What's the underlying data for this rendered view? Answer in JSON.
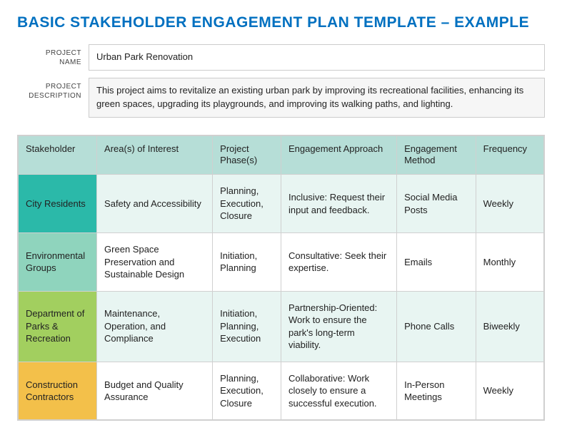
{
  "title": {
    "text": "BASIC STAKEHOLDER ENGAGEMENT PLAN TEMPLATE – EXAMPLE",
    "color": "#0070c0"
  },
  "meta": {
    "project_name_label": "PROJECT\nNAME",
    "project_name_value": "Urban Park Renovation",
    "project_desc_label": "PROJECT\nDESCRIPTION",
    "project_desc_value": "This project aims to revitalize an existing urban park by improving its recreational facilities, enhancing its green spaces, upgrading its playgrounds, and improving its walking paths, and lighting."
  },
  "table": {
    "header_bg": "#b6ded7",
    "row_tints": [
      "#e8f5f2",
      "#ffffff",
      "#e8f5f2",
      "#ffffff"
    ],
    "col_widths": [
      "15%",
      "22%",
      "13%",
      "22%",
      "15%",
      "13%"
    ],
    "columns": [
      "Stakeholder",
      "Area(s) of Interest",
      "Project Phase(s)",
      "Engagement Approach",
      "Engagement Method",
      "Frequency"
    ],
    "first_col_colors": [
      "#2bb9a9",
      "#8fd4bd",
      "#a2cf5f",
      "#f3c04a"
    ],
    "rows": [
      [
        "City Residents",
        "Safety and Accessibility",
        "Planning, Execution, Closure",
        "Inclusive: Request their input and feedback.",
        "Social Media Posts",
        "Weekly"
      ],
      [
        "Environmental Groups",
        "Green Space Preservation and Sustainable Design",
        "Initiation, Planning",
        "Consultative: Seek their expertise.",
        "Emails",
        "Monthly"
      ],
      [
        "Department of Parks & Recreation",
        "Maintenance, Operation, and Compliance",
        "Initiation, Planning, Execution",
        "Partnership-Oriented: Work to ensure the park's long-term viability.",
        "Phone Calls",
        "Biweekly"
      ],
      [
        "Construction Contractors",
        "Budget and Quality Assurance",
        "Planning, Execution, Closure",
        "Collaborative: Work closely to ensure a successful execution.",
        "In-Person Meetings",
        "Weekly"
      ]
    ]
  }
}
